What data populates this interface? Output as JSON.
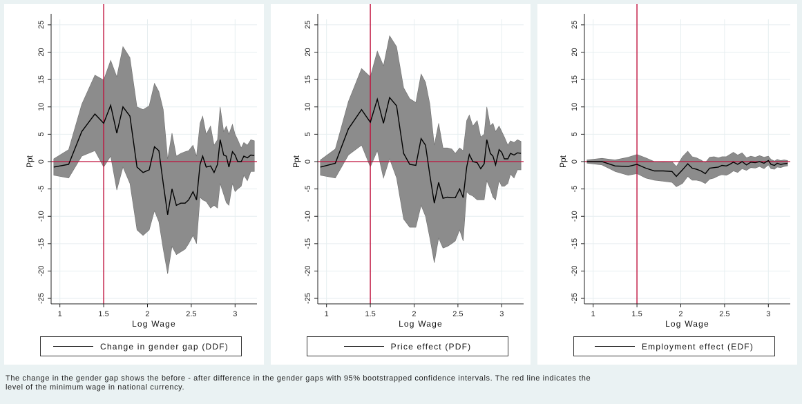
{
  "chart_data": [
    {
      "type": "area",
      "xlabel": "Log Wage",
      "ylabel": "Ppt",
      "xticks": [
        "1",
        "1.5",
        "2",
        "2.5",
        "3"
      ],
      "yticks": [
        "25",
        "20",
        "15",
        "10",
        "5",
        "0",
        "-5",
        "-10",
        "-15",
        "-20",
        "-25"
      ],
      "xlim": [
        0.9,
        3.25
      ],
      "ylim": [
        -26,
        26
      ],
      "vline_x": 1.5,
      "legend": "Change in gender gap (DDF)",
      "series": [
        {
          "x": [
            0.93,
            1.1,
            1.25,
            1.4,
            1.5,
            1.58,
            1.65,
            1.72,
            1.8,
            1.88,
            1.95,
            2.02,
            2.08,
            2.13,
            2.18,
            2.23,
            2.28,
            2.33,
            2.38,
            2.43,
            2.47,
            2.52,
            2.56,
            2.6,
            2.63,
            2.67,
            2.72,
            2.76,
            2.8,
            2.83,
            2.87,
            2.9,
            2.93,
            2.97,
            3.0,
            3.03,
            3.07,
            3.1,
            3.14,
            3.18,
            3.22
          ],
          "y": [
            -1,
            -0.5,
            5.5,
            8.7,
            7,
            10.3,
            5.2,
            10,
            8.3,
            -1,
            -2,
            -1.5,
            2.7,
            2,
            -4,
            -9.7,
            -5,
            -8,
            -7.6,
            -7.6,
            -7,
            -5.5,
            -7,
            -0.5,
            1,
            -1,
            -0.8,
            -2,
            -0.5,
            4,
            1.2,
            1,
            -1,
            1.8,
            1.2,
            0,
            0,
            1,
            0.7,
            1.2,
            1.1
          ],
          "lower": [
            -2.5,
            -3,
            1,
            2,
            -1,
            1,
            -5.2,
            -1,
            -4,
            -12.5,
            -13.5,
            -12.5,
            -9,
            -11,
            -16,
            -20.5,
            -15.5,
            -17,
            -16.5,
            -16,
            -15,
            -13.5,
            -15,
            -6.5,
            -7,
            -7.3,
            -8.5,
            -8,
            -8.5,
            -4,
            -6,
            -7.5,
            -8,
            -4,
            -5.5,
            -5,
            -4.5,
            -2.5,
            -3.5,
            -1.8,
            -1.8
          ],
          "upper": [
            0.5,
            2.2,
            10.5,
            15.8,
            14.9,
            18.5,
            15.5,
            21,
            19,
            10,
            9.5,
            10.2,
            14.3,
            12.8,
            9.5,
            0.5,
            5.2,
            1,
            1.5,
            1.8,
            2,
            3,
            1,
            7,
            8.3,
            5,
            6.5,
            3,
            4,
            10,
            5.5,
            6.5,
            5,
            6.8,
            5,
            4,
            2.5,
            3.5,
            3,
            4,
            3.8
          ]
        }
      ]
    },
    {
      "type": "area",
      "xlabel": "Log Wage",
      "ylabel": "Ppt",
      "xticks": [
        "1",
        "1.5",
        "2",
        "2.5",
        "3"
      ],
      "yticks": [
        "25",
        "20",
        "15",
        "10",
        "5",
        "0",
        "-5",
        "-10",
        "-15",
        "-20",
        "-25"
      ],
      "xlim": [
        0.9,
        3.25
      ],
      "ylim": [
        -26,
        26
      ],
      "vline_x": 1.5,
      "legend": "Price effect (PDF)",
      "series": [
        {
          "x": [
            0.93,
            1.1,
            1.25,
            1.4,
            1.5,
            1.58,
            1.65,
            1.72,
            1.8,
            1.88,
            1.95,
            2.02,
            2.08,
            2.13,
            2.18,
            2.23,
            2.28,
            2.33,
            2.38,
            2.43,
            2.47,
            2.52,
            2.56,
            2.6,
            2.63,
            2.67,
            2.72,
            2.76,
            2.8,
            2.83,
            2.87,
            2.9,
            2.93,
            2.97,
            3.0,
            3.03,
            3.07,
            3.1,
            3.14,
            3.18,
            3.22
          ],
          "y": [
            -1,
            -0.3,
            6,
            9.5,
            7.2,
            11.4,
            7,
            11.7,
            10.2,
            1.5,
            -0.5,
            -0.7,
            4.2,
            3,
            -2.5,
            -7.6,
            -3.8,
            -6.7,
            -6.5,
            -6.6,
            -6.6,
            -5,
            -6.6,
            -1,
            1.3,
            0,
            -0.2,
            -1.3,
            -0.4,
            4,
            1.5,
            1,
            -0.6,
            2.2,
            1.7,
            0.5,
            0.5,
            1.5,
            1.2,
            1.6,
            1.5
          ],
          "lower": [
            -2.5,
            -3,
            1.2,
            3,
            -1,
            2,
            -3,
            0.5,
            -3,
            -10.5,
            -12,
            -12,
            -8,
            -10,
            -14,
            -18.5,
            -14,
            -15.8,
            -15.5,
            -15,
            -14.5,
            -12.5,
            -14.5,
            -5.5,
            -6,
            -6.3,
            -7,
            -7,
            -7,
            -3.5,
            -5,
            -6.5,
            -7,
            -3.5,
            -4.5,
            -4.5,
            -4,
            -2.3,
            -3,
            -1.5,
            -1.5
          ],
          "upper": [
            0.3,
            2.3,
            11,
            17,
            15.5,
            20.2,
            17.5,
            23,
            21,
            13.5,
            11.5,
            10.8,
            16,
            14.5,
            10.5,
            3,
            7,
            2.5,
            2.5,
            2.3,
            1.5,
            2.5,
            2,
            7.5,
            8.5,
            6.5,
            7.5,
            4.5,
            5,
            10,
            6.5,
            7,
            5.5,
            6.5,
            5.5,
            4.5,
            3,
            3.8,
            3.5,
            4,
            3.7
          ]
        }
      ]
    },
    {
      "type": "area",
      "xlabel": "Log Wage",
      "ylabel": "Ppt",
      "xticks": [
        "1",
        "1.5",
        "2",
        "2.5",
        "3"
      ],
      "yticks": [
        "25",
        "20",
        "15",
        "10",
        "5",
        "0",
        "-5",
        "-10",
        "-15",
        "-20",
        "-25"
      ],
      "xlim": [
        0.9,
        3.25
      ],
      "ylim": [
        -26,
        26
      ],
      "vline_x": 1.5,
      "legend": "Employment effect (EDF)",
      "series": [
        {
          "x": [
            0.93,
            1.1,
            1.25,
            1.4,
            1.5,
            1.6,
            1.7,
            1.8,
            1.9,
            1.95,
            2.02,
            2.08,
            2.13,
            2.18,
            2.23,
            2.28,
            2.33,
            2.38,
            2.43,
            2.47,
            2.52,
            2.56,
            2.6,
            2.65,
            2.7,
            2.75,
            2.8,
            2.85,
            2.9,
            2.95,
            3.0,
            3.03,
            3.07,
            3.1,
            3.14,
            3.18,
            3.22
          ],
          "y": [
            0,
            0,
            -0.8,
            -0.9,
            -0.5,
            -1.2,
            -1.7,
            -1.7,
            -1.8,
            -2.7,
            -1.5,
            -0.4,
            -1.2,
            -1.4,
            -1.7,
            -2.2,
            -1.2,
            -1.1,
            -1,
            -0.7,
            -0.8,
            -0.5,
            -0.1,
            -0.5,
            0,
            -0.6,
            -0.1,
            -0.2,
            0,
            -0.3,
            0.2,
            -0.5,
            -0.7,
            -0.3,
            -0.5,
            -0.4,
            -0.3
          ],
          "lower": [
            -0.3,
            -0.6,
            -1.8,
            -2.5,
            -2.2,
            -3,
            -3.4,
            -3.6,
            -3.8,
            -4.6,
            -4,
            -2.7,
            -3.4,
            -3.4,
            -3.6,
            -4,
            -3.2,
            -3,
            -2.6,
            -2.4,
            -2.5,
            -2.2,
            -1.7,
            -2,
            -1.3,
            -1.6,
            -1.1,
            -1.2,
            -0.9,
            -1.3,
            -0.6,
            -1.3,
            -1.4,
            -1,
            -1.1,
            -0.9,
            -0.8
          ],
          "upper": [
            0.3,
            0.6,
            0.3,
            0.8,
            1.3,
            0.7,
            0,
            -0.1,
            0,
            -0.9,
            0.9,
            1.9,
            0.9,
            0.7,
            0.3,
            -0.2,
            0.8,
            0.9,
            0.7,
            0.9,
            0.9,
            1.3,
            1.7,
            1.2,
            1.6,
            0.7,
            1,
            0.8,
            1.1,
            0.8,
            1,
            0.4,
            0.1,
            0.4,
            0.2,
            0.3,
            0.2
          ]
        }
      ]
    }
  ],
  "caption": {
    "line1": "The change in the gender gap shows the before - after difference in the gender gaps with 95% bootstrapped confidence intervals. The red line indicates the",
    "line2": "level of the minimum wage in national currency."
  },
  "colors": {
    "band": "#8c8c8c",
    "line": "#000000",
    "vline": "#c0103c",
    "hline": "#c0103c",
    "grid": "#e6eef0",
    "background": "#eaf2f3"
  }
}
